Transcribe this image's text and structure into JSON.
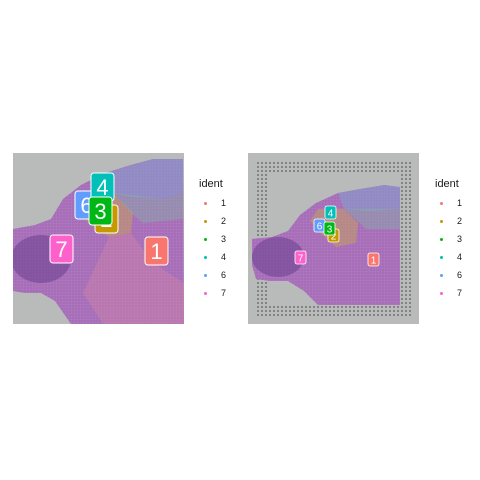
{
  "panels": [
    {
      "id": "left",
      "cluster_labels": [
        {
          "label": "1",
          "color": "#F8766D"
        },
        {
          "label": "2",
          "color": "#C49A00"
        },
        {
          "label": "3",
          "color": "#00B815"
        },
        {
          "label": "4",
          "color": "#00C0B8"
        },
        {
          "label": "6",
          "color": "#619CFF"
        },
        {
          "label": "7",
          "color": "#FF61CC"
        }
      ]
    },
    {
      "id": "right",
      "cluster_labels": [
        {
          "label": "1",
          "color": "#F8766D"
        },
        {
          "label": "2",
          "color": "#C49A00"
        },
        {
          "label": "3",
          "color": "#00B815"
        },
        {
          "label": "4",
          "color": "#00C0B8"
        },
        {
          "label": "6",
          "color": "#619CFF"
        },
        {
          "label": "7",
          "color": "#FF61CC"
        }
      ]
    }
  ],
  "legend": {
    "title": "ident",
    "items": [
      {
        "label": "1",
        "color": "#F8766D"
      },
      {
        "label": "2",
        "color": "#C49A00"
      },
      {
        "label": "3",
        "color": "#00B815"
      },
      {
        "label": "4",
        "color": "#00C0B8"
      },
      {
        "label": "6",
        "color": "#619CFF"
      },
      {
        "label": "7",
        "color": "#FF61CC"
      }
    ]
  }
}
